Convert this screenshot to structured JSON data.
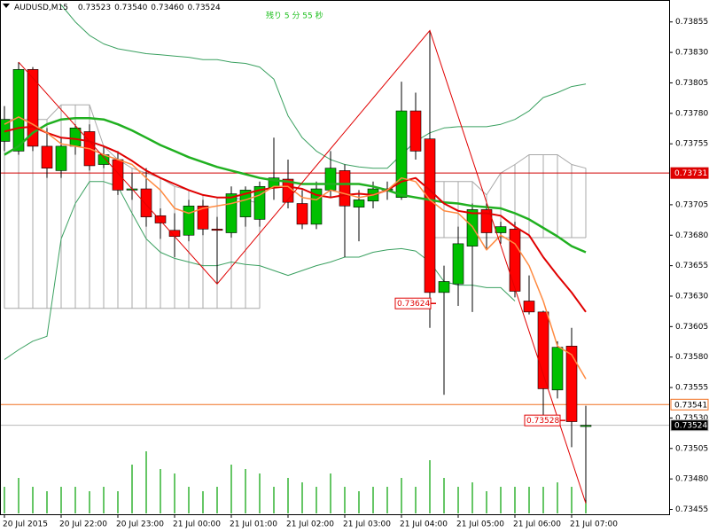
{
  "chart_data": {
    "type": "candlestick",
    "symbol": "AUDUSD,M15",
    "header_values": [
      0.73523,
      {
        "value": 0.7354,
        "label": "0.73540"
      },
      {
        "value": 0.7346,
        "label": "0.73460"
      },
      0.73524
    ],
    "timer_text": "残り 5 分 55 秒",
    "categories": [
      "20 Jul 2015",
      null,
      null,
      null,
      "20 Jul 22:00",
      null,
      null,
      null,
      "20 Jul 23:00",
      null,
      null,
      null,
      "21 Jul 00:00",
      null,
      null,
      null,
      "21 Jul 01:00",
      null,
      null,
      null,
      "21 Jul 02:00",
      null,
      null,
      null,
      "21 Jul 03:00",
      null,
      null,
      null,
      "21 Jul 04:00",
      null,
      null,
      null,
      "21 Jul 05:00",
      null,
      null,
      null,
      "21 Jul 06:00",
      null,
      null,
      null,
      "21 Jul 07:00",
      null
    ],
    "open": [
      0.73757,
      0.73749,
      0.73816,
      0.73753,
      0.73733,
      0.73753,
      0.73765,
      0.73738,
      0.73742,
      0.73717,
      0.73718,
      0.73696,
      0.73684,
      0.7368,
      0.73704,
      0.73685,
      0.73682,
      0.73695,
      0.73693,
      0.73719,
      0.73726,
      0.73706,
      0.73689,
      0.73717,
      0.73733,
      0.73703,
      0.73708,
      0.73717,
      0.73711,
      0.73782,
      0.73759,
      0.73633,
      0.7364,
      0.73671,
      0.73701,
      0.73682,
      0.73685,
      0.73626,
      0.73617,
      0.73553,
      0.73589,
      0.73523
    ],
    "high": [
      0.73786,
      0.73822,
      0.73818,
      0.73768,
      0.7376,
      0.73771,
      0.73771,
      0.73753,
      0.73749,
      0.73731,
      0.73735,
      0.73702,
      0.73698,
      0.73709,
      0.73709,
      0.73695,
      0.7372,
      0.7372,
      0.73724,
      0.7376,
      0.73742,
      0.73717,
      0.73724,
      0.73749,
      0.73738,
      0.73717,
      0.73724,
      0.73724,
      0.73806,
      0.73797,
      0.73848,
      0.73655,
      0.73687,
      0.73706,
      0.73706,
      0.73691,
      0.73691,
      0.73647,
      0.73618,
      0.73593,
      0.73604,
      0.7354
    ],
    "low": [
      0.73749,
      0.73746,
      0.73749,
      0.73727,
      0.73727,
      0.73746,
      0.73733,
      0.73735,
      0.73713,
      0.73709,
      0.73687,
      0.73677,
      0.73662,
      0.73675,
      0.7368,
      0.7364,
      0.73678,
      0.73687,
      0.73687,
      0.73709,
      0.73702,
      0.73685,
      0.73685,
      0.73711,
      0.73662,
      0.73675,
      0.73702,
      0.73709,
      0.73709,
      0.73742,
      0.73604,
      0.73549,
      0.73622,
      0.73617,
      0.73669,
      0.73673,
      0.73629,
      0.73615,
      0.73531,
      0.73546,
      0.73506,
      0.7346
    ],
    "close": [
      0.73775,
      0.73816,
      0.73753,
      0.73735,
      0.73753,
      0.73768,
      0.73737,
      0.73746,
      0.73717,
      0.73718,
      0.73695,
      0.7369,
      0.73679,
      0.73704,
      0.73685,
      0.73684,
      0.73714,
      0.73717,
      0.7372,
      0.73727,
      0.73707,
      0.73689,
      0.73718,
      0.73735,
      0.73704,
      0.73709,
      0.73718,
      0.73718,
      0.73782,
      0.73749,
      0.73633,
      0.73642,
      0.73673,
      0.73701,
      0.73682,
      0.73687,
      0.73634,
      0.73617,
      0.73554,
      0.73588,
      0.73527,
      0.73524
    ],
    "up_color": "#00c000",
    "down_color": "#ff0000",
    "volume": {
      "color": "#00a000",
      "values": [
        210,
        280,
        210,
        175,
        210,
        210,
        175,
        210,
        175,
        385,
        490,
        350,
        315,
        210,
        175,
        210,
        385,
        350,
        315,
        210,
        280,
        245,
        210,
        315,
        210,
        175,
        210,
        210,
        280,
        210,
        420,
        280,
        210,
        245,
        175,
        210,
        210,
        210,
        210,
        245,
        210,
        105
      ]
    },
    "cloud": {
      "color": "#a8a8a8",
      "top": [
        0.73775,
        0.73775,
        0.73775,
        0.73775,
        0.73787,
        0.73787,
        0.73787,
        0.73753,
        0.73742,
        0.73735,
        0.73731,
        0.73727,
        0.7372,
        0.73717,
        0.73713,
        0.73711,
        0.73711,
        0.73709,
        0.73706,
        null,
        null,
        null,
        null,
        null,
        null,
        null,
        null,
        null,
        null,
        null,
        0.73724,
        0.73724,
        0.73724,
        0.73724,
        0.73713,
        0.73731,
        0.73738,
        0.73746,
        0.73746,
        0.73746,
        0.73738,
        0.73735
      ],
      "bottom": [
        0.7362,
        0.7362,
        0.7362,
        0.7362,
        0.7362,
        0.7362,
        0.7362,
        0.7362,
        0.7362,
        0.7362,
        0.7362,
        0.7362,
        0.7362,
        0.7362,
        0.7362,
        0.7362,
        0.7362,
        0.7362,
        0.7362,
        null,
        null,
        null,
        null,
        null,
        null,
        null,
        null,
        null,
        null,
        null,
        0.73678,
        0.73678,
        0.73678,
        0.73678,
        0.73678,
        0.73678,
        0.73678,
        0.73678,
        0.73678,
        0.73678,
        0.73678,
        0.73678
      ]
    },
    "lines": [
      {
        "color": "#3aa060",
        "width": 1,
        "values": [
          null,
          null,
          null,
          null,
          0.73869,
          0.73855,
          0.73844,
          0.73837,
          0.73833,
          0.73831,
          0.73829,
          0.73828,
          0.73827,
          0.73826,
          0.73824,
          0.73824,
          0.73822,
          0.73821,
          0.73818,
          0.73808,
          0.73778,
          0.7376,
          0.73749,
          0.73742,
          0.73738,
          0.73736,
          0.73735,
          0.73735,
          0.73746,
          0.73757,
          0.73764,
          0.73768,
          0.73769,
          0.73769,
          0.73769,
          0.73771,
          0.73775,
          0.73782,
          0.73793,
          0.73797,
          0.73802,
          0.73804
        ]
      },
      {
        "color": "#3aa060",
        "width": 1,
        "values": [
          0.73578,
          0.73586,
          0.73593,
          0.73597,
          0.73677,
          0.73706,
          0.73724,
          0.73724,
          0.7372,
          0.73698,
          0.73677,
          0.73666,
          0.73661,
          0.73658,
          0.73655,
          0.73655,
          0.73658,
          0.73656,
          0.73655,
          0.73651,
          0.73647,
          0.73651,
          0.73655,
          0.73658,
          0.73662,
          0.73662,
          0.73666,
          0.73668,
          0.73669,
          0.73667,
          0.73658,
          0.73642,
          0.73639,
          0.73639,
          0.73637,
          0.73637,
          0.73626,
          null,
          null,
          null,
          null,
          null
        ]
      },
      {
        "color": "#20b020",
        "width": 2.5,
        "values": [
          0.73746,
          0.73753,
          0.73764,
          0.73771,
          0.73775,
          0.73776,
          0.73776,
          0.73775,
          0.73771,
          0.73766,
          0.7376,
          0.73754,
          0.73749,
          0.73744,
          0.7374,
          0.73736,
          0.73733,
          0.7373,
          0.73727,
          0.73725,
          0.73724,
          0.73722,
          0.73722,
          0.73722,
          0.73722,
          0.73722,
          0.7372,
          0.73717,
          0.73713,
          0.73711,
          0.73709,
          0.73707,
          0.73706,
          0.73704,
          0.73703,
          0.73702,
          0.73698,
          0.73693,
          0.73686,
          0.73679,
          0.73671,
          0.73666
        ]
      },
      {
        "color": "#e00000",
        "width": 2,
        "values": [
          0.73765,
          0.73768,
          0.73769,
          0.73764,
          0.7376,
          0.73759,
          0.73757,
          0.73753,
          0.73748,
          0.73741,
          0.73733,
          0.73727,
          0.73722,
          0.73717,
          0.73713,
          0.73711,
          0.73711,
          0.73714,
          0.73717,
          0.73719,
          0.7372,
          0.73718,
          0.73713,
          0.73711,
          0.73713,
          0.73714,
          0.73713,
          0.73717,
          0.73724,
          0.73727,
          0.73717,
          0.73706,
          0.737,
          0.73698,
          0.73698,
          0.73696,
          0.73687,
          0.7368,
          0.73662,
          0.73647,
          0.73633,
          0.73617
        ]
      },
      {
        "color": "#ff8a40",
        "width": 1.5,
        "values": [
          0.73771,
          0.73777,
          0.73771,
          0.73764,
          0.73755,
          0.73753,
          0.73751,
          0.73746,
          0.73742,
          0.73738,
          0.73727,
          0.73717,
          0.73702,
          0.73698,
          0.73702,
          0.73704,
          0.73706,
          0.73709,
          0.73713,
          0.7372,
          0.7372,
          0.73711,
          0.73709,
          0.73717,
          0.73714,
          0.73711,
          0.73713,
          0.73717,
          0.73727,
          0.73724,
          0.73709,
          0.737,
          0.73698,
          0.73687,
          0.73668,
          0.7368,
          0.73673,
          0.73655,
          0.73626,
          0.73589,
          0.73582,
          0.73562
        ]
      }
    ],
    "zigzag": {
      "color": "#e00000",
      "x": [
        1,
        15,
        30,
        41
      ],
      "values": [
        0.73822,
        0.7364,
        0.73848,
        0.7346
      ]
    },
    "hlines": [
      {
        "value": 0.73731,
        "color": "#d00000",
        "label_fill": "#e00000",
        "label_text": "#ffffff"
      },
      {
        "value": 0.73541,
        "color": "#f07020",
        "label_fill": "#ffffff",
        "label_text": "#000000"
      },
      {
        "value": 0.73524,
        "color": "#b8b8b8",
        "label_fill": "#000000",
        "label_text": "#ffffff"
      }
    ],
    "price_labels": [
      0.73624,
      0.73528
    ],
    "ylim": [
      0.73451,
      0.73873
    ],
    "yticks": [
      0.73855,
      {
        "value": 0.7383,
        "label": "0.73830"
      },
      0.73805,
      {
        "value": 0.7378,
        "label": "0.73780"
      },
      0.73755,
      0.73705,
      {
        "value": 0.7368,
        "label": "0.73680"
      },
      0.73655,
      {
        "value": 0.7363,
        "label": "0.73630"
      },
      0.73605,
      {
        "value": 0.7358,
        "label": "0.73580"
      },
      0.73555,
      {
        "value": 0.7353,
        "label": "0.73530"
      },
      0.73505,
      {
        "value": 0.7348,
        "label": "0.73480"
      },
      0.73455
    ]
  }
}
